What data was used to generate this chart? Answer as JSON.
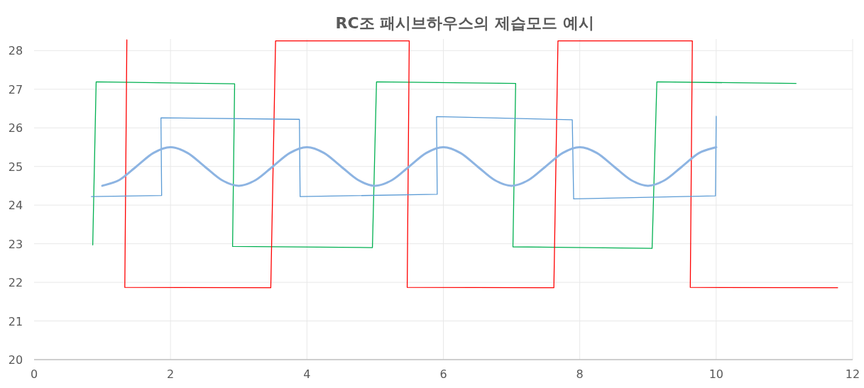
{
  "chart_data": {
    "type": "line",
    "title": "RC조 패시브하우스의 제습모드 예시",
    "xlim": [
      0,
      12
    ],
    "xticks": [
      0,
      2,
      4,
      6,
      8,
      10,
      12
    ],
    "ylim": [
      20,
      28.3
    ],
    "yticks": [
      20,
      21,
      22,
      23,
      24,
      25,
      26,
      27,
      28
    ],
    "grid": true,
    "marker": "none",
    "line_style": "solid",
    "series": [
      {
        "color": "#00b050",
        "x": [
          0.86,
          0.91,
          2.94,
          2.91,
          4.96,
          5.02,
          7.06,
          7.02,
          9.06,
          9.13,
          11.17
        ],
        "values": [
          22.97,
          27.19,
          27.14,
          22.93,
          22.9,
          27.19,
          27.15,
          22.92,
          22.88,
          27.19,
          27.15
        ]
      },
      {
        "color": "#ff0000",
        "x": [
          1.36,
          1.33,
          3.47,
          3.54,
          5.5,
          5.47,
          7.62,
          7.68,
          9.65,
          9.62,
          11.78
        ],
        "values": [
          28.28,
          21.87,
          21.86,
          28.25,
          28.25,
          21.87,
          21.86,
          28.25,
          28.25,
          21.87,
          21.86
        ]
      },
      {
        "color": "#5b9bd5",
        "x": [
          0.84,
          1.87,
          1.86,
          3.89,
          3.9,
          5.91,
          5.9,
          7.89,
          7.91,
          9.99,
          10.0
        ],
        "values": [
          24.22,
          24.25,
          26.26,
          26.22,
          24.22,
          24.28,
          26.29,
          26.21,
          24.16,
          24.24,
          26.3
        ]
      },
      {
        "color": "#8db4e2",
        "x": [
          1,
          1.25,
          1.5,
          1.75,
          2,
          2.25,
          2.5,
          2.75,
          3,
          3.25,
          3.5,
          3.75,
          4,
          4.25,
          4.5,
          4.75,
          5,
          5.25,
          5.5,
          5.75,
          6,
          6.25,
          6.5,
          6.75,
          7,
          7.25,
          7.5,
          7.75,
          8,
          8.25,
          8.5,
          8.75,
          9,
          9.25,
          9.5,
          9.75,
          10
        ],
        "values": [
          24.5,
          24.65,
          25,
          25.35,
          25.5,
          25.35,
          25,
          24.65,
          24.5,
          24.65,
          25,
          25.35,
          25.5,
          25.35,
          25,
          24.65,
          24.5,
          24.65,
          25,
          25.35,
          25.5,
          25.35,
          25,
          24.65,
          24.5,
          24.65,
          25,
          25.35,
          25.5,
          25.35,
          25,
          24.65,
          24.5,
          24.65,
          25,
          25.35,
          25.5
        ]
      }
    ]
  }
}
